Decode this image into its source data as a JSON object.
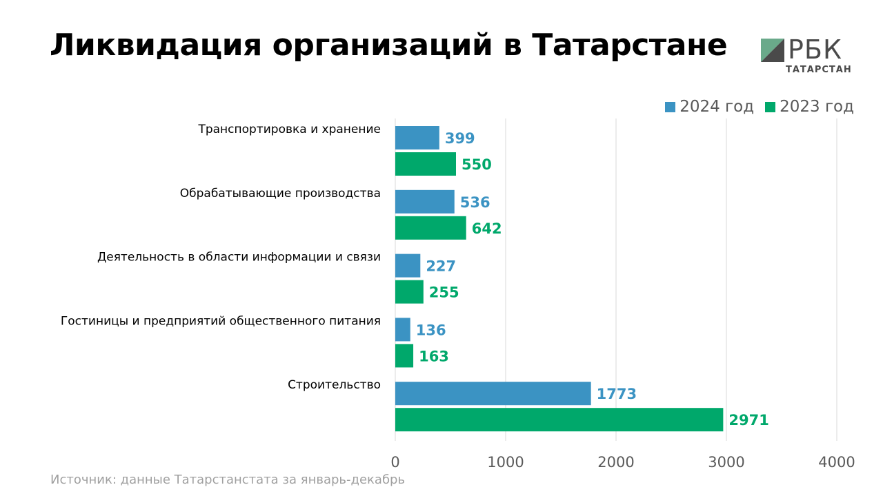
{
  "header": {
    "title": "Ликвидация организаций в Татарстане"
  },
  "logo": {
    "name": "РБК",
    "sub": "ТАТАРСТАН",
    "mark_color": "#6aa98a"
  },
  "footer": {
    "source": "Источник: данные Татарстанстата за январь-декабрь"
  },
  "chart_data": {
    "type": "bar",
    "orientation": "horizontal",
    "categories": [
      "Транспортировка и хранение",
      "Обрабатывающие производства",
      "Деятельность в области информации и связи",
      "Гостиницы и предприятий общественного питания",
      "Строительство"
    ],
    "series": [
      {
        "name": "2024 год",
        "color": "#3b93c3",
        "values": [
          399,
          536,
          227,
          136,
          1773
        ]
      },
      {
        "name": "2023 год",
        "color": "#00a86b",
        "values": [
          550,
          642,
          255,
          163,
          2971
        ]
      }
    ],
    "xlim": [
      0,
      4000
    ],
    "xticks": [
      0,
      1000,
      2000,
      3000,
      4000
    ],
    "grid": true,
    "legend_position": "top-right",
    "data_labels": true
  }
}
